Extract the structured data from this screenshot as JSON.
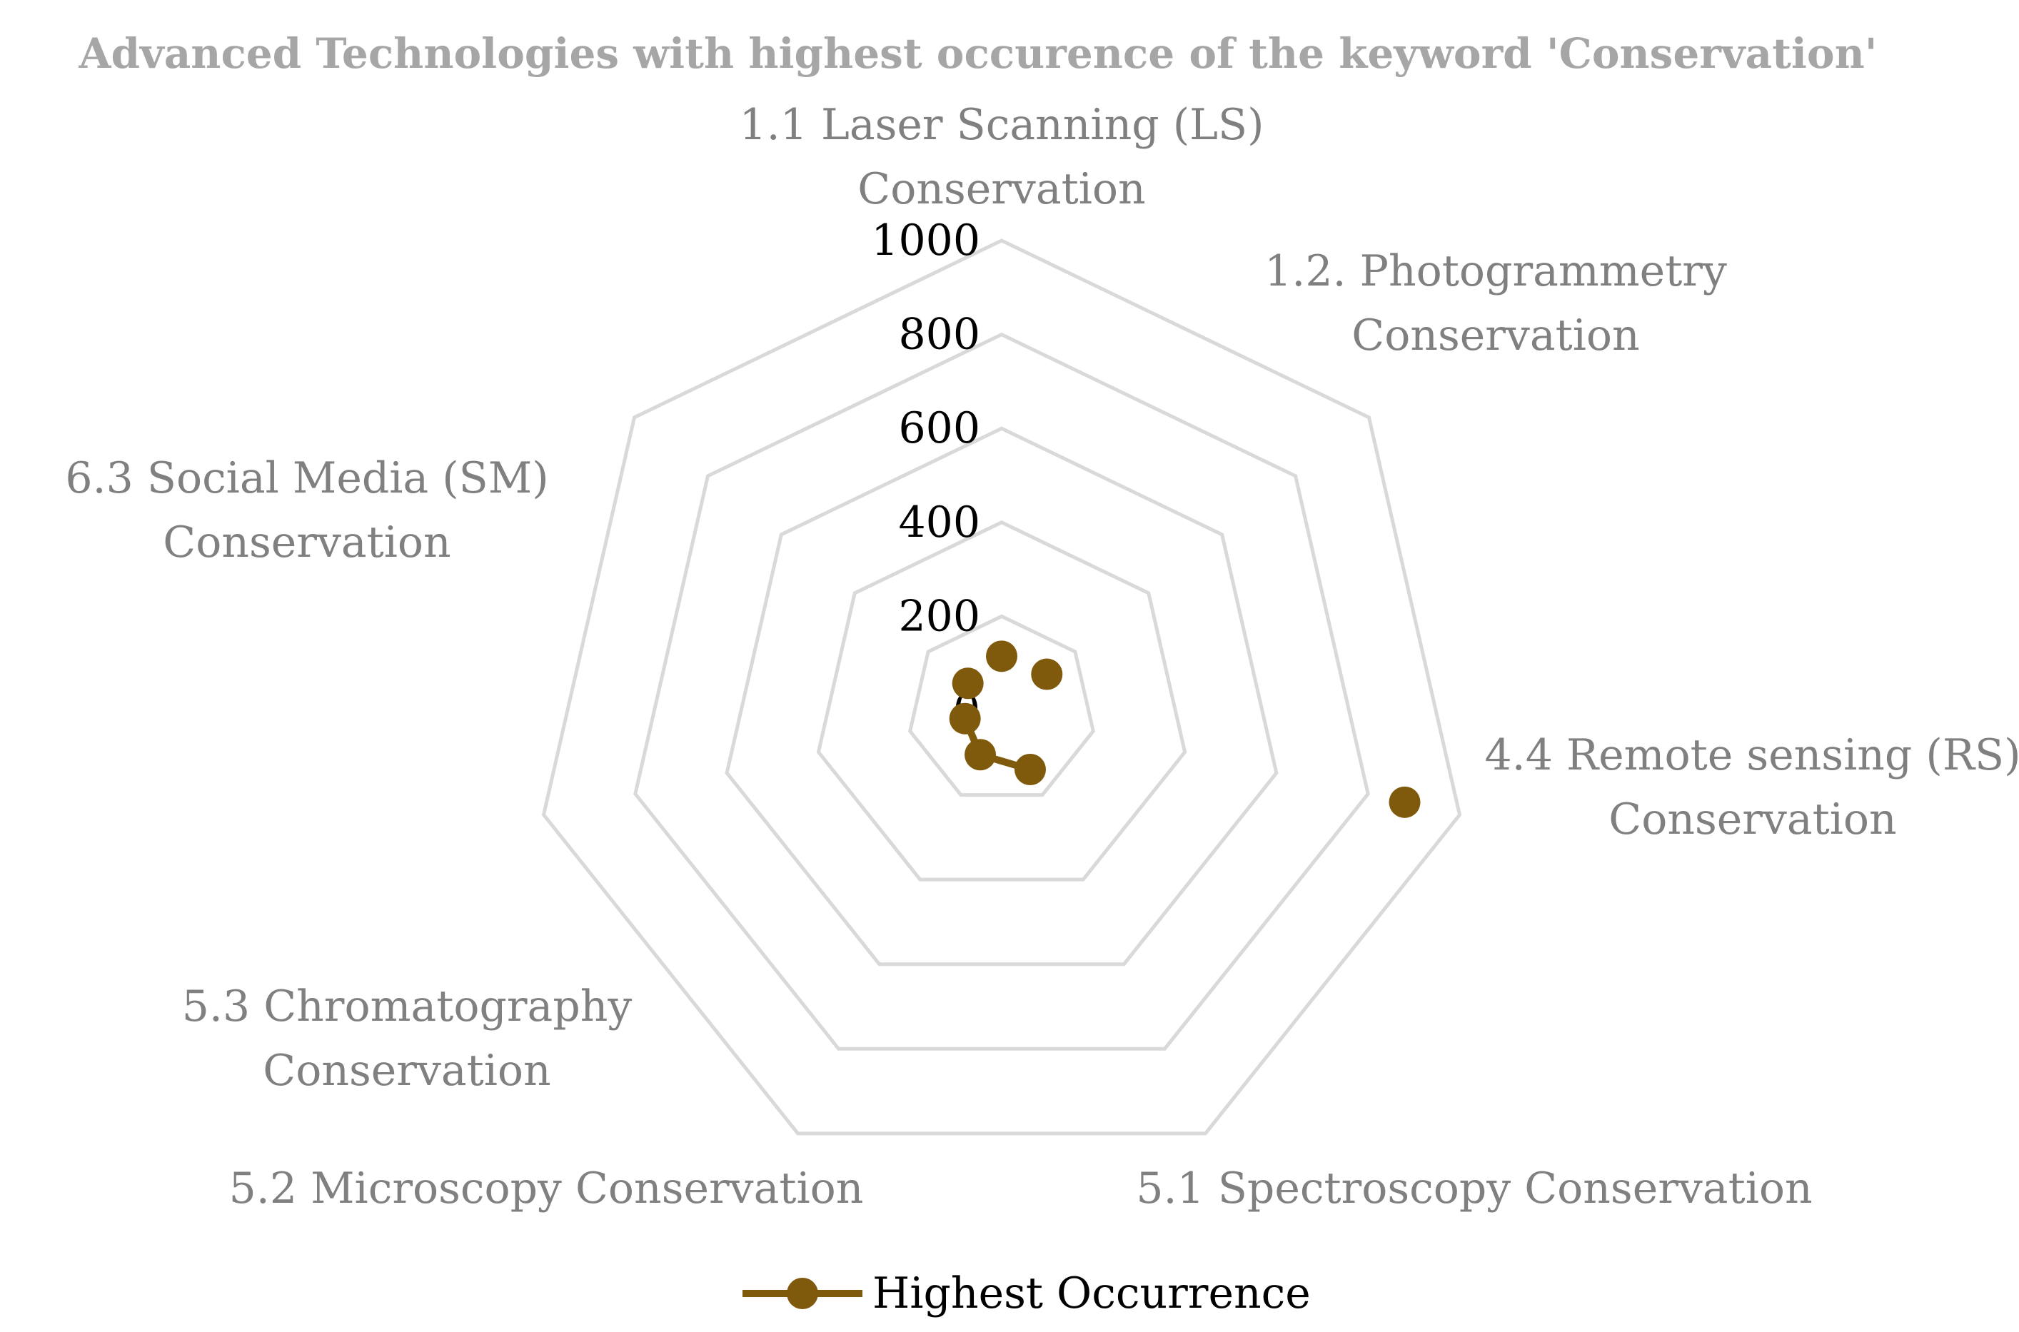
{
  "chart_data": {
    "type": "radar",
    "title": "Advanced Technologies with highest occurence of the keyword 'Conservation'",
    "categories": [
      [
        "1.1 Laser Scanning (LS)",
        "Conservation"
      ],
      [
        "1.2. Photogrammetry",
        "Conservation"
      ],
      [
        "4.4 Remote sensing (RS)",
        "Conservation"
      ],
      [
        "5.1 Spectroscopy Conservation"
      ],
      [
        "5.2 Microscopy  Conservation"
      ],
      [
        "5.3 Chromatography",
        "Conservation"
      ],
      [
        "6.3 Social Media (SM)",
        "Conservation"
      ]
    ],
    "category_values": [
      115,
      123,
      880,
      140,
      105,
      80,
      92
    ],
    "series": [
      {
        "name": "Highest Occurrence",
        "color": "#7f5a0c",
        "note_visible_points": [
          {
            "x": 1.2,
            "y": 110
          },
          {
            "x": 1.55,
            "y": 126
          },
          {
            "x": 2.95,
            "y": 880
          },
          {
            "x": 4.05,
            "y": 140
          },
          {
            "x": 4.75,
            "y": 100
          },
          {
            "x": 5.4,
            "y": 60
          },
          {
            "x": 7.8,
            "y": 100
          }
        ]
      }
    ],
    "ticks": [
      "0",
      "200",
      "400",
      "600",
      "800",
      "1000"
    ],
    "ylim": [
      0,
      1000
    ],
    "grid": true,
    "grid_color": "#d9d9d9",
    "legend_position": "bottom"
  }
}
